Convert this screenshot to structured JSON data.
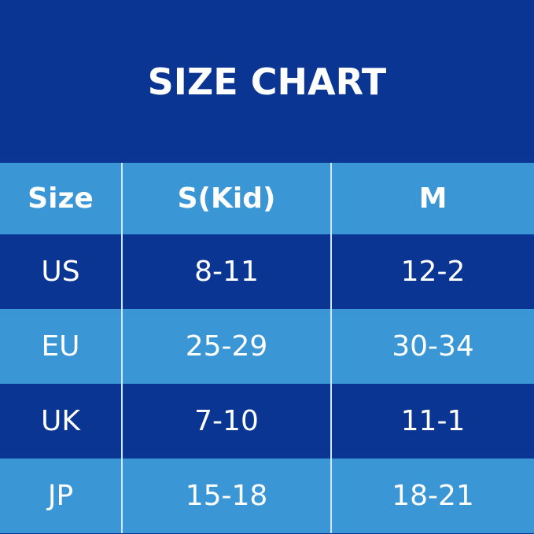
{
  "title": "SIZE CHART",
  "colors": {
    "dark": "#0b3592",
    "light": "#3a96d5"
  },
  "table": {
    "headers": [
      "Size",
      "S(Kid)",
      "M"
    ],
    "rows": [
      [
        "US",
        "8-11",
        "12-2"
      ],
      [
        "EU",
        "25-29",
        "30-34"
      ],
      [
        "UK",
        "7-10",
        "11-1"
      ],
      [
        "JP",
        "15-18",
        "18-21"
      ]
    ]
  }
}
